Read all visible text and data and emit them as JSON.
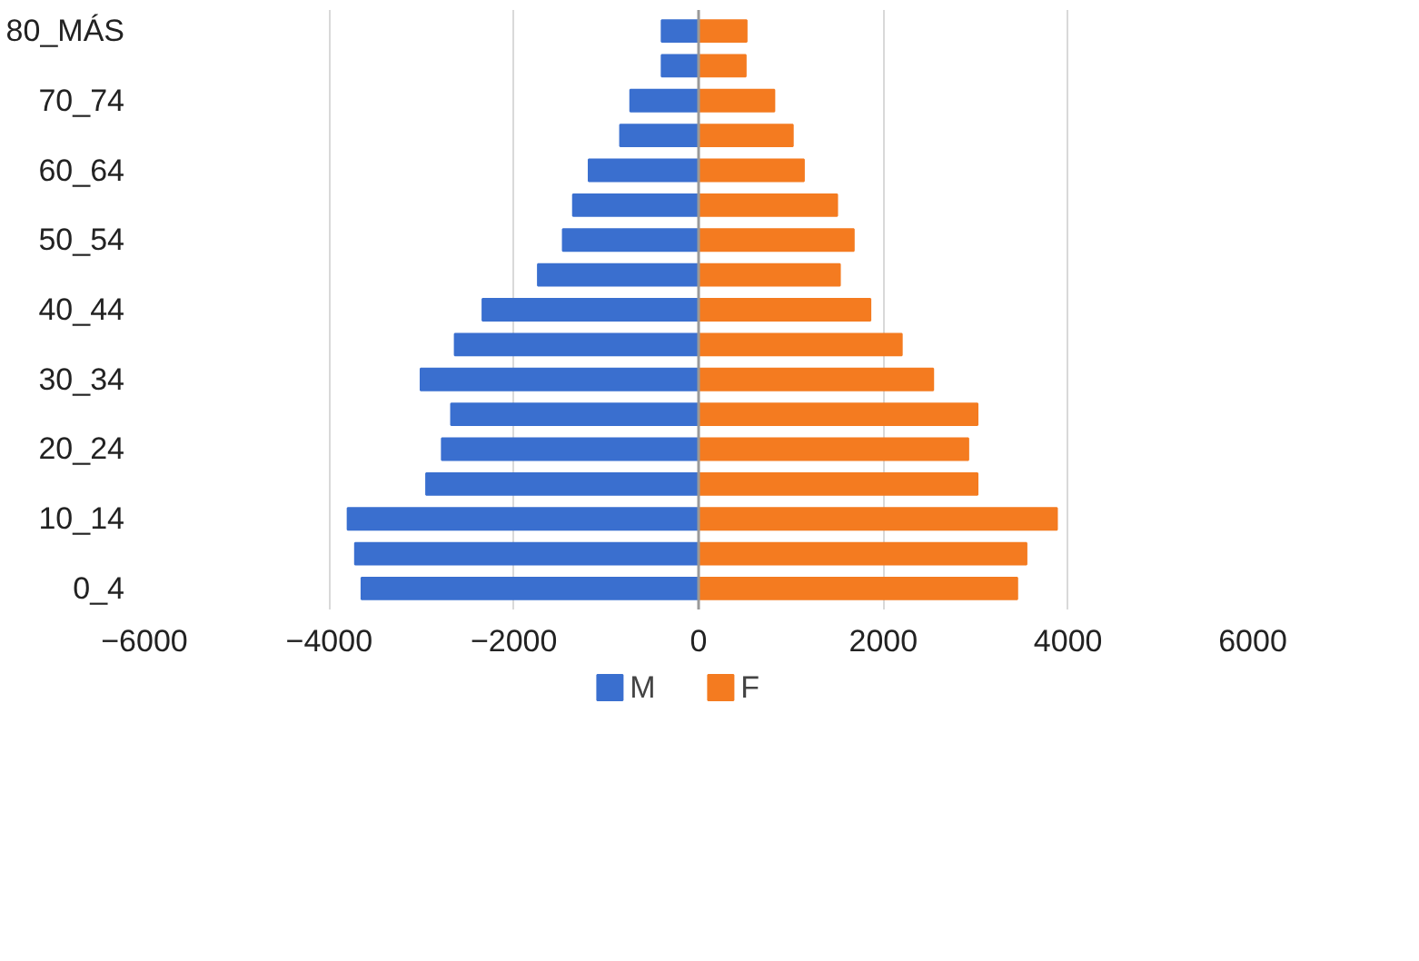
{
  "chart_data": {
    "type": "bar",
    "orientation": "horizontal",
    "categories": [
      "80_MÁS",
      null,
      "70_74",
      null,
      "60_64",
      null,
      "50_54",
      null,
      "40_44",
      null,
      "30_34",
      null,
      "20_24",
      null,
      "10_14",
      null,
      "0_4"
    ],
    "series": [
      {
        "name": "M",
        "color": "#3a6fcf",
        "values": [
          -400,
          -400,
          -740,
          -850,
          -1190,
          -1360,
          -1470,
          -1740,
          -2340,
          -2640,
          -3010,
          -2680,
          -2780,
          -2950,
          -3800,
          -3720,
          -3650
        ]
      },
      {
        "name": "F",
        "color": "#f47b20",
        "values": [
          520,
          510,
          820,
          1020,
          1140,
          1500,
          1680,
          1530,
          1860,
          2200,
          2540,
          3020,
          2920,
          3020,
          3880,
          3550,
          3450
        ]
      }
    ],
    "xlim": [
      -6000,
      6000
    ],
    "xticks": [
      -6000,
      -4000,
      -2000,
      0,
      2000,
      4000,
      6000
    ],
    "stacked": true,
    "grid": "x",
    "legend": "bottom"
  }
}
